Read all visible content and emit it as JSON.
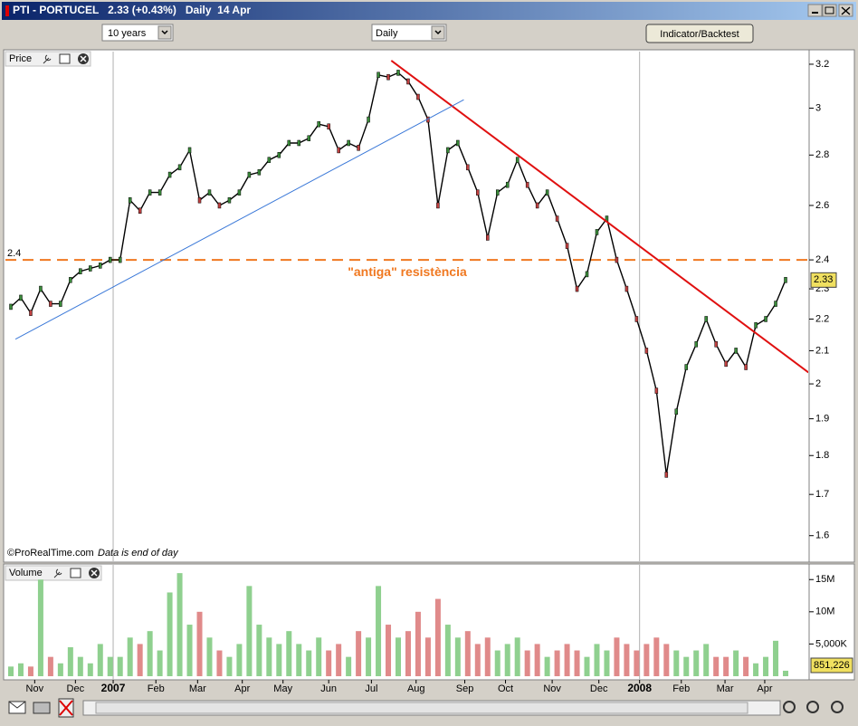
{
  "window": {
    "title": "PTI - PORTUCEL   2.33 (+0.43%)   Daily  14 Apr"
  },
  "toolbar": {
    "period": "10 years",
    "interval": "Daily",
    "button": "Indicator/Backtest"
  },
  "chart_data": [
    {
      "type": "line",
      "panel_label": "Price",
      "footer": "©ProRealTime.com",
      "footer_note": "Data is end of day",
      "log_scale": true,
      "ylim": [
        1.545,
        3.26
      ],
      "yticks": [
        1.6,
        1.7,
        1.8,
        1.9,
        2,
        2.1,
        2.2,
        2.3,
        2.4,
        2.6,
        2.8,
        3,
        3.2
      ],
      "xlim": [
        0,
        78
      ],
      "xticks": [
        {
          "value": 2.4,
          "label": "Nov"
        },
        {
          "value": 6.5,
          "label": "Dec"
        },
        {
          "value": 10.3,
          "label": "2007"
        },
        {
          "value": 14.6,
          "label": "Feb"
        },
        {
          "value": 18.8,
          "label": "Mar"
        },
        {
          "value": 23.3,
          "label": "Apr"
        },
        {
          "value": 27.4,
          "label": "May"
        },
        {
          "value": 32,
          "label": "Jun"
        },
        {
          "value": 36.3,
          "label": "Jul"
        },
        {
          "value": 40.8,
          "label": "Aug"
        },
        {
          "value": 45.7,
          "label": "Sep"
        },
        {
          "value": 49.8,
          "label": "Oct"
        },
        {
          "value": 54.5,
          "label": "Nov"
        },
        {
          "value": 59.2,
          "label": "Dec"
        },
        {
          "value": 63.3,
          "label": "2008"
        },
        {
          "value": 67.5,
          "label": "Feb"
        },
        {
          "value": 71.9,
          "label": "Mar"
        },
        {
          "value": 75.9,
          "label": "Apr"
        }
      ],
      "series": [
        {
          "color": "#000000",
          "values": [
            2.24,
            2.27,
            2.22,
            2.3,
            2.25,
            2.25,
            2.33,
            2.36,
            2.37,
            2.38,
            2.4,
            2.4,
            2.62,
            2.58,
            2.65,
            2.65,
            2.72,
            2.75,
            2.82,
            2.62,
            2.65,
            2.6,
            2.62,
            2.65,
            2.72,
            2.73,
            2.78,
            2.8,
            2.85,
            2.85,
            2.87,
            2.93,
            2.92,
            2.82,
            2.85,
            2.83,
            2.95,
            3.15,
            3.14,
            3.16,
            3.12,
            3.05,
            2.95,
            2.6,
            2.82,
            2.85,
            2.75,
            2.65,
            2.48,
            2.65,
            2.68,
            2.78,
            2.68,
            2.6,
            2.65,
            2.55,
            2.45,
            2.3,
            2.35,
            2.5,
            2.55,
            2.4,
            2.3,
            2.2,
            2.1,
            1.98,
            1.75,
            1.92,
            2.05,
            2.12,
            2.2,
            2.12,
            2.06,
            2.1,
            2.05,
            2.18,
            2.2,
            2.25,
            2.33
          ]
        }
      ],
      "hline": {
        "value": 2.4,
        "color": "#f07820",
        "annotation": "\"antiga\" resistència"
      },
      "trendlines": [
        {
          "color": "#e01010",
          "x": [
            38.3,
            80.3
          ],
          "y": [
            3.217,
            2.034
          ]
        },
        {
          "color": "#3a78d8",
          "x": [
            0.46,
            45.6
          ],
          "y": [
            2.136,
            3.037
          ]
        }
      ]
    },
    {
      "type": "bar",
      "panel_label": "Volume",
      "ylim": [
        0,
        17000000
      ],
      "yticks": [
        {
          "value": 5000000,
          "label": "5,000K"
        },
        {
          "value": 10000000,
          "label": "10M"
        },
        {
          "value": 15000000,
          "label": "15M"
        }
      ],
      "up_color": "#8fd08f",
      "down_color": "#e08a8a",
      "values": [
        1500000,
        2000000,
        1500000,
        15000000,
        3000000,
        2000000,
        4500000,
        3000000,
        2000000,
        5000000,
        3000000,
        3000000,
        6000000,
        5000000,
        7000000,
        4000000,
        13000000,
        16000000,
        8000000,
        10000000,
        6000000,
        4000000,
        3000000,
        5000000,
        14000000,
        8000000,
        6000000,
        5000000,
        7000000,
        5000000,
        4000000,
        6000000,
        4000000,
        5000000,
        3000000,
        7000000,
        6000000,
        14000000,
        8000000,
        6000000,
        7000000,
        10000000,
        6000000,
        12000000,
        8000000,
        6000000,
        7000000,
        5000000,
        6000000,
        4000000,
        5000000,
        6000000,
        4000000,
        5000000,
        3000000,
        4000000,
        5000000,
        4000000,
        3000000,
        5000000,
        4000000,
        6000000,
        5000000,
        4000000,
        5000000,
        6000000,
        5000000,
        4000000,
        3000000,
        4000000,
        5000000,
        3000000,
        3000000,
        4000000,
        3000000,
        2000000,
        3000000,
        5500000,
        851226
      ],
      "value_labels": {
        "78": "851,226"
      }
    }
  ]
}
